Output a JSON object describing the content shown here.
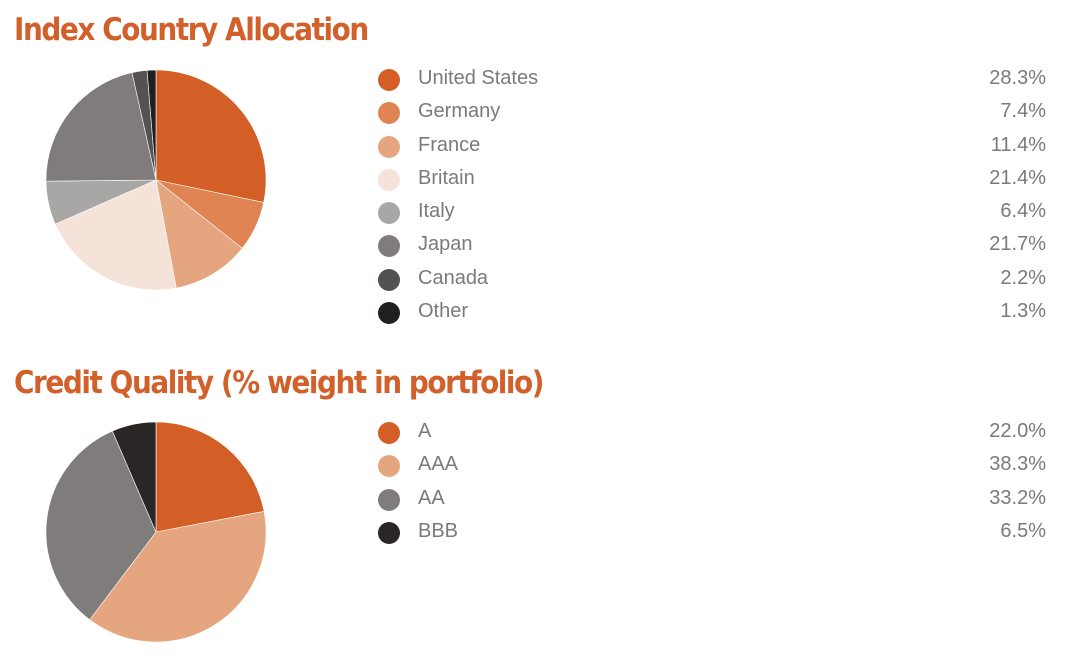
{
  "accent_color": "#d2602a",
  "chart_data": [
    {
      "type": "pie",
      "title": "Index Country Allocation",
      "start_angle": "12 o'clock",
      "direction": "clockwise",
      "slices": [
        {
          "label": "United States",
          "value": 28.3,
          "value_label": "28.3%",
          "color": "#d35f27"
        },
        {
          "label": "Germany",
          "value": 7.4,
          "value_label": "7.4%",
          "color": "#df8452"
        },
        {
          "label": "France",
          "value": 11.4,
          "value_label": "11.4%",
          "color": "#e5a67f"
        },
        {
          "label": "Britain",
          "value": 21.4,
          "value_label": "21.4%",
          "color": "#f5e3da"
        },
        {
          "label": "Italy",
          "value": 6.4,
          "value_label": "6.4%",
          "color": "#a9a7a6"
        },
        {
          "label": "Japan",
          "value": 21.7,
          "value_label": "21.7%",
          "color": "#7f7c7b"
        },
        {
          "label": "Canada",
          "value": 2.2,
          "value_label": "2.2%",
          "color": "#535151"
        },
        {
          "label": "Other",
          "value": 1.3,
          "value_label": "1.3%",
          "color": "#221f1f"
        }
      ]
    },
    {
      "type": "pie",
      "title": "Credit Quality (% weight in portfolio)",
      "start_angle": "12 o'clock",
      "direction": "clockwise",
      "slices": [
        {
          "label": "A",
          "value": 22.0,
          "value_label": "22.0%",
          "color": "#d35f27"
        },
        {
          "label": "AAA",
          "value": 38.3,
          "value_label": "38.3%",
          "color": "#e5a67f"
        },
        {
          "label": "AA",
          "value": 33.2,
          "value_label": "33.2%",
          "color": "#7f7c7b"
        },
        {
          "label": "BBB",
          "value": 6.5,
          "value_label": "6.5%",
          "color": "#2a2626"
        }
      ]
    }
  ]
}
